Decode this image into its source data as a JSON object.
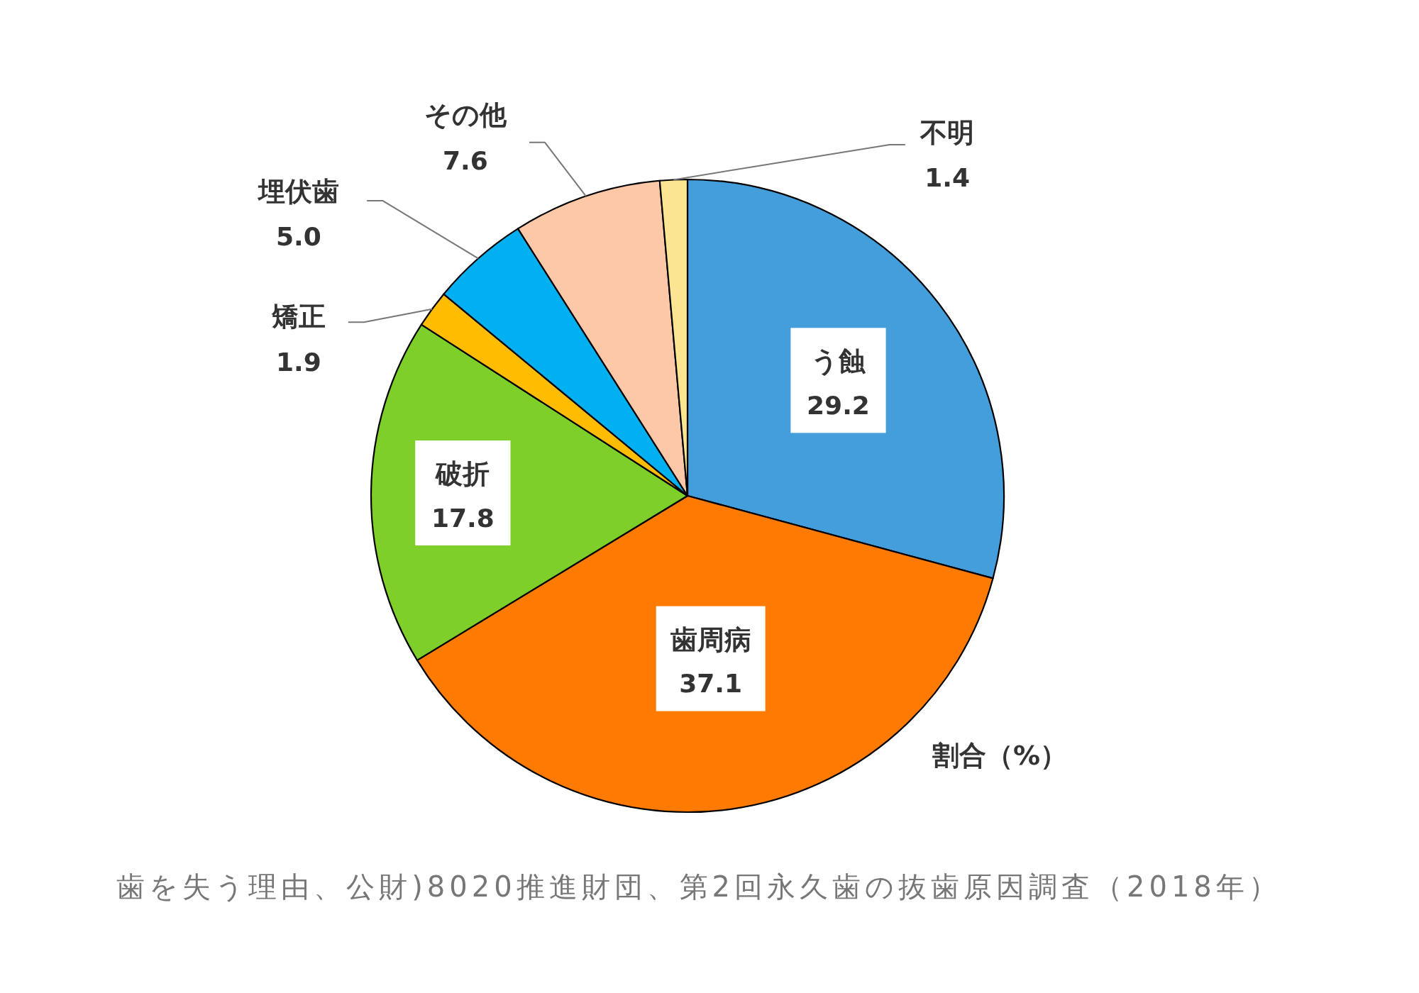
{
  "chart_data": {
    "type": "pie",
    "categories": [
      "う蝕",
      "歯周病",
      "破折",
      "矯正",
      "埋伏歯",
      "その他",
      "不明"
    ],
    "values": [
      29.2,
      37.1,
      17.8,
      1.9,
      5.0,
      7.6,
      1.4
    ],
    "value_labels": [
      "29.2",
      "37.1",
      "17.8",
      "1.9",
      "5.0",
      "7.6",
      "1.4"
    ],
    "colors": [
      "#459edc",
      "#ff7a00",
      "#7fcf2b",
      "#ffbc00",
      "#00b0f0",
      "#fcc8a8",
      "#fbe593"
    ],
    "annotations": [
      "割合（%）",
      "歯を失う理由、公財)8020推進財団、第2回永久歯の抜歯原因調査（2018年）"
    ]
  }
}
